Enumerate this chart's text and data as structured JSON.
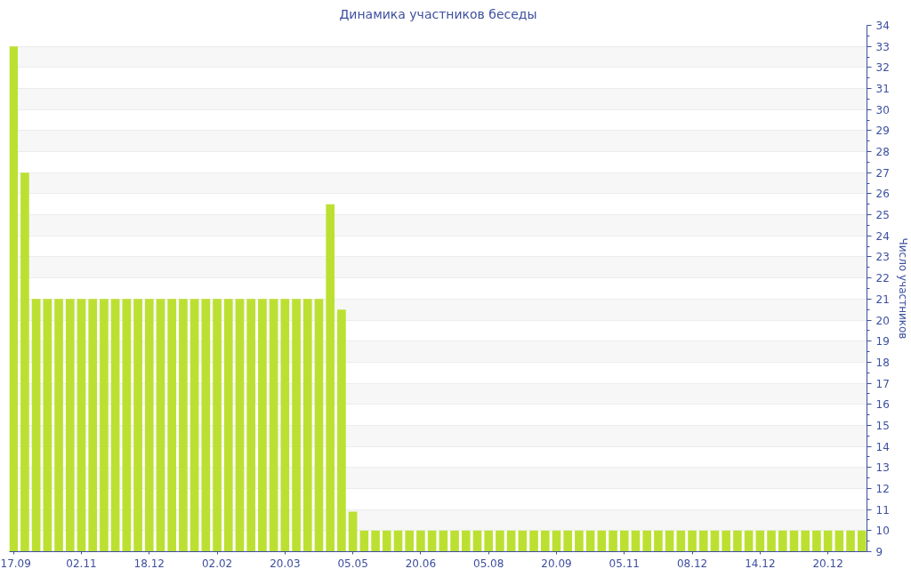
{
  "chart_data": {
    "type": "bar",
    "title": "Динамика участников беседы",
    "ylabel": "Число участников",
    "categories": [
      "17.09",
      null,
      null,
      null,
      null,
      null,
      "02.11",
      null,
      null,
      null,
      null,
      null,
      "18.12",
      null,
      null,
      null,
      null,
      null,
      "02.02",
      null,
      null,
      null,
      null,
      null,
      "20.03",
      null,
      null,
      null,
      null,
      null,
      "05.05",
      null,
      null,
      null,
      null,
      null,
      "20.06",
      null,
      null,
      null,
      null,
      null,
      "05.08",
      null,
      null,
      null,
      null,
      null,
      "20.09",
      null,
      null,
      null,
      null,
      null,
      "05.11",
      null,
      null,
      null,
      null,
      null,
      "08.12",
      null,
      null,
      null,
      null,
      null,
      "14.12",
      null,
      null,
      null,
      null,
      null,
      "20.12",
      null,
      null,
      null
    ],
    "values": [
      33,
      27,
      21,
      21,
      21,
      21,
      21,
      21,
      21,
      21,
      21,
      21,
      21,
      21,
      21,
      21,
      21,
      21,
      21,
      21,
      21,
      21,
      21,
      21,
      21,
      21,
      21,
      21,
      25.5,
      20.5,
      10.9,
      10,
      10,
      10,
      10,
      10,
      10,
      10,
      10,
      10,
      10,
      10,
      10,
      10,
      10,
      10,
      10,
      10,
      10,
      10,
      10,
      10,
      10,
      10,
      10,
      10,
      10,
      10,
      10,
      10,
      10,
      10,
      10,
      10,
      10,
      10,
      10,
      10,
      10,
      10,
      10,
      10,
      10,
      10,
      10,
      10
    ],
    "color": "#bce032",
    "ylim": [
      9,
      34
    ],
    "yticks": [
      9,
      10,
      11,
      12,
      13,
      14,
      15,
      16,
      17,
      18,
      19,
      20,
      21,
      22,
      23,
      24,
      25,
      26,
      27,
      28,
      29,
      30,
      31,
      32,
      33,
      34
    ],
    "grid": "y"
  }
}
